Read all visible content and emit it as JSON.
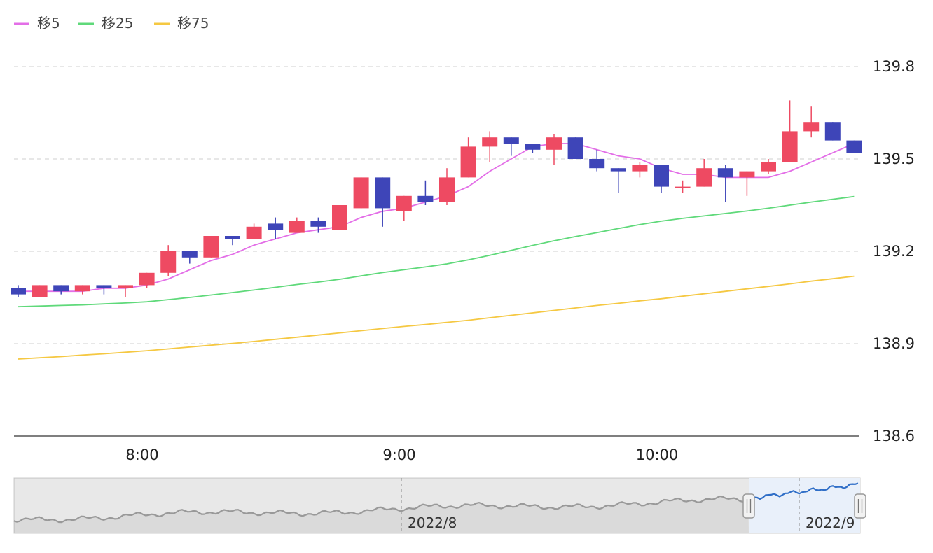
{
  "legend": {
    "items": [
      {
        "label": "移5",
        "color": "#e36ee7"
      },
      {
        "label": "移25",
        "color": "#5fd97a"
      },
      {
        "label": "移75",
        "color": "#f5c842"
      }
    ]
  },
  "chart_data": {
    "type": "candlestick",
    "y_axis": {
      "position": "right",
      "ticks": [
        "139.8",
        "139.5",
        "139.2",
        "138.9",
        "138.6"
      ],
      "ylim": [
        138.6,
        139.8
      ]
    },
    "x_axis": {
      "ticks": [
        "8:00",
        "9:00",
        "10:00"
      ]
    },
    "grid": "horizontal dashed",
    "up_color": "#ee4a62",
    "down_color": "#3e45b8",
    "candles": [
      {
        "o": 139.08,
        "h": 139.09,
        "l": 139.05,
        "c": 139.06
      },
      {
        "o": 139.05,
        "h": 139.09,
        "l": 139.05,
        "c": 139.09
      },
      {
        "o": 139.09,
        "h": 139.09,
        "l": 139.06,
        "c": 139.07
      },
      {
        "o": 139.07,
        "h": 139.09,
        "l": 139.06,
        "c": 139.09
      },
      {
        "o": 139.09,
        "h": 139.09,
        "l": 139.06,
        "c": 139.08
      },
      {
        "o": 139.08,
        "h": 139.09,
        "l": 139.05,
        "c": 139.09
      },
      {
        "o": 139.09,
        "h": 139.13,
        "l": 139.08,
        "c": 139.13
      },
      {
        "o": 139.13,
        "h": 139.22,
        "l": 139.12,
        "c": 139.2
      },
      {
        "o": 139.2,
        "h": 139.2,
        "l": 139.16,
        "c": 139.18
      },
      {
        "o": 139.18,
        "h": 139.25,
        "l": 139.18,
        "c": 139.25
      },
      {
        "o": 139.25,
        "h": 139.25,
        "l": 139.22,
        "c": 139.24
      },
      {
        "o": 139.24,
        "h": 139.29,
        "l": 139.24,
        "c": 139.28
      },
      {
        "o": 139.29,
        "h": 139.31,
        "l": 139.24,
        "c": 139.27
      },
      {
        "o": 139.26,
        "h": 139.31,
        "l": 139.26,
        "c": 139.3
      },
      {
        "o": 139.3,
        "h": 139.31,
        "l": 139.26,
        "c": 139.28
      },
      {
        "o": 139.27,
        "h": 139.35,
        "l": 139.27,
        "c": 139.35
      },
      {
        "o": 139.34,
        "h": 139.44,
        "l": 139.34,
        "c": 139.44
      },
      {
        "o": 139.44,
        "h": 139.44,
        "l": 139.28,
        "c": 139.34
      },
      {
        "o": 139.33,
        "h": 139.38,
        "l": 139.3,
        "c": 139.38
      },
      {
        "o": 139.38,
        "h": 139.43,
        "l": 139.35,
        "c": 139.36
      },
      {
        "o": 139.36,
        "h": 139.47,
        "l": 139.35,
        "c": 139.44
      },
      {
        "o": 139.44,
        "h": 139.57,
        "l": 139.44,
        "c": 139.54
      },
      {
        "o": 139.54,
        "h": 139.59,
        "l": 139.49,
        "c": 139.57
      },
      {
        "o": 139.57,
        "h": 139.57,
        "l": 139.51,
        "c": 139.55
      },
      {
        "o": 139.55,
        "h": 139.55,
        "l": 139.52,
        "c": 139.53
      },
      {
        "o": 139.53,
        "h": 139.58,
        "l": 139.48,
        "c": 139.57
      },
      {
        "o": 139.57,
        "h": 139.57,
        "l": 139.5,
        "c": 139.5
      },
      {
        "o": 139.5,
        "h": 139.53,
        "l": 139.46,
        "c": 139.47
      },
      {
        "o": 139.47,
        "h": 139.47,
        "l": 139.39,
        "c": 139.46
      },
      {
        "o": 139.46,
        "h": 139.49,
        "l": 139.44,
        "c": 139.48
      },
      {
        "o": 139.48,
        "h": 139.48,
        "l": 139.39,
        "c": 139.41
      },
      {
        "o": 139.41,
        "h": 139.43,
        "l": 139.39,
        "c": 139.41
      },
      {
        "o": 139.41,
        "h": 139.5,
        "l": 139.41,
        "c": 139.47
      },
      {
        "o": 139.47,
        "h": 139.48,
        "l": 139.36,
        "c": 139.44
      },
      {
        "o": 139.44,
        "h": 139.46,
        "l": 139.38,
        "c": 139.46
      },
      {
        "o": 139.46,
        "h": 139.5,
        "l": 139.45,
        "c": 139.49
      },
      {
        "o": 139.49,
        "h": 139.69,
        "l": 139.49,
        "c": 139.59
      },
      {
        "o": 139.59,
        "h": 139.67,
        "l": 139.57,
        "c": 139.62
      },
      {
        "o": 139.62,
        "h": 139.62,
        "l": 139.56,
        "c": 139.56
      },
      {
        "o": 139.56,
        "h": 139.56,
        "l": 139.52,
        "c": 139.52
      }
    ],
    "series": [
      {
        "name": "移5",
        "color": "#e36ee7",
        "values": [
          139.07,
          139.07,
          139.07,
          139.07,
          139.08,
          139.08,
          139.09,
          139.11,
          139.14,
          139.17,
          139.19,
          139.22,
          139.24,
          139.26,
          139.27,
          139.28,
          139.31,
          139.33,
          139.34,
          139.36,
          139.38,
          139.41,
          139.46,
          139.5,
          139.54,
          139.55,
          139.55,
          139.53,
          139.51,
          139.5,
          139.47,
          139.45,
          139.45,
          139.44,
          139.44,
          139.44,
          139.46,
          139.49,
          139.52,
          139.55
        ]
      },
      {
        "name": "移25",
        "color": "#5fd97a",
        "values": [
          139.02,
          139.022,
          139.024,
          139.026,
          139.029,
          139.032,
          139.036,
          139.043,
          139.05,
          139.058,
          139.066,
          139.074,
          139.083,
          139.092,
          139.1,
          139.109,
          139.12,
          139.131,
          139.14,
          139.149,
          139.159,
          139.172,
          139.187,
          139.203,
          139.219,
          139.234,
          139.248,
          139.261,
          139.274,
          139.287,
          139.298,
          139.307,
          139.315,
          139.323,
          139.331,
          139.34,
          139.35,
          139.36,
          139.369,
          139.378
        ]
      },
      {
        "name": "移75",
        "color": "#f5c842",
        "values": [
          138.85,
          138.854,
          138.858,
          138.863,
          138.867,
          138.872,
          138.877,
          138.883,
          138.889,
          138.895,
          138.901,
          138.907,
          138.914,
          138.921,
          138.928,
          138.935,
          138.942,
          138.949,
          138.956,
          138.962,
          138.969,
          138.976,
          138.984,
          138.992,
          139.0,
          139.008,
          139.016,
          139.024,
          139.031,
          139.039,
          139.046,
          139.054,
          139.062,
          139.07,
          139.078,
          139.086,
          139.094,
          139.103,
          139.111,
          139.119
        ]
      }
    ],
    "navigator": {
      "labels": [
        "2022/8",
        "2022/9"
      ],
      "series_color": "#999999",
      "selected_series_color": "#2f6ec7",
      "handle": "||"
    }
  }
}
